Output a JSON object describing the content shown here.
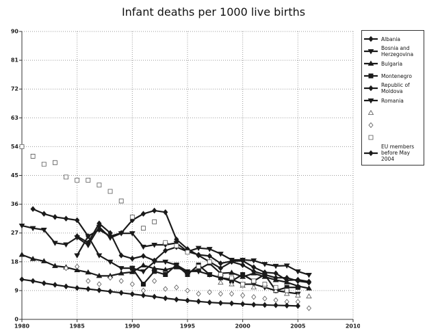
{
  "chart_data": {
    "type": "line",
    "title": "Infant deaths per 1000 live births",
    "x": [
      1980,
      1981,
      1982,
      1983,
      1984,
      1985,
      1986,
      1987,
      1988,
      1989,
      1990,
      1991,
      1992,
      1993,
      1994,
      1995,
      1996,
      1997,
      1998,
      1999,
      2000,
      2001,
      2002,
      2003,
      2004,
      2005,
      2006
    ],
    "xlim": [
      1980,
      2010
    ],
    "xticks": [
      1980,
      1985,
      1990,
      1995,
      2000,
      2005,
      2010
    ],
    "ylim": [
      0,
      90
    ],
    "yticks": [
      0,
      9,
      18,
      27,
      36,
      45,
      54,
      63,
      72,
      81,
      90
    ],
    "grid": true,
    "legend": "right",
    "series": [
      {
        "name": "Albania",
        "color": "#1a1a1a",
        "marker": "diamond",
        "line": true,
        "values": [
          null,
          34.5,
          33,
          32,
          31.5,
          31,
          26,
          28,
          26,
          27,
          31,
          33,
          34,
          33.5,
          25,
          22,
          20,
          18,
          16,
          18,
          17,
          15,
          14,
          13,
          13,
          12,
          11.5
        ]
      },
      {
        "name": "Bosnia and Herzegovina",
        "color": "#1a1a1a",
        "marker": "triangle-down",
        "line": true,
        "values": [
          null,
          null,
          null,
          null,
          null,
          20,
          26,
          20,
          18,
          16,
          16,
          15,
          18,
          18,
          17,
          15,
          15,
          14,
          13,
          12.5,
          11,
          11,
          10,
          9,
          8.5,
          8,
          null
        ]
      },
      {
        "name": "Bulgaria",
        "color": "#1a1a1a",
        "marker": "triangle-up",
        "line": true,
        "values": [
          20.2,
          18.9,
          18.2,
          16.7,
          16.3,
          15.4,
          14.7,
          13.6,
          13.6,
          14.4,
          14.8,
          16.9,
          15.9,
          15.5,
          16.3,
          14.8,
          15.6,
          17.5,
          14.4,
          14.6,
          13.3,
          14.4,
          13.3,
          12.3,
          11.6,
          10.4,
          9.7
        ]
      },
      {
        "name": "Montenegro",
        "color": "#1a1a1a",
        "marker": "square",
        "line": true,
        "values": [
          null,
          null,
          null,
          null,
          null,
          null,
          null,
          null,
          null,
          null,
          16,
          11,
          15,
          14,
          17,
          14,
          17,
          14,
          13,
          12,
          14,
          12,
          14,
          9,
          10,
          10,
          null
        ]
      },
      {
        "name": "Republic of Moldova",
        "color": "#1a1a1a",
        "marker": "diamond",
        "line": true,
        "values": [
          null,
          null,
          null,
          null,
          null,
          26,
          24,
          30,
          27,
          20,
          19,
          19.8,
          18.4,
          21.5,
          22.6,
          21.2,
          20.2,
          19.8,
          17.5,
          18.2,
          18.3,
          16.3,
          14.7,
          14.4,
          12.2,
          12.4,
          11.8
        ]
      },
      {
        "name": "Romania",
        "color": "#1a1a1a",
        "marker": "triangle-down",
        "line": true,
        "values": [
          29.3,
          28.5,
          28,
          23.9,
          23.4,
          25.6,
          23.2,
          28.9,
          25.5,
          26.9,
          26.9,
          22.7,
          23.3,
          23.3,
          23.9,
          21.2,
          22.3,
          22,
          20.5,
          18.6,
          18.6,
          18.4,
          17.3,
          16.7,
          16.8,
          15,
          13.9
        ]
      },
      {
        "name": null,
        "color": "#555555",
        "marker": "open-triangle",
        "line": false,
        "values": [
          null,
          null,
          null,
          null,
          null,
          null,
          null,
          null,
          null,
          null,
          null,
          null,
          null,
          null,
          null,
          null,
          null,
          null,
          11.5,
          11,
          10.5,
          10,
          10.5,
          9,
          8,
          7.5,
          7.2
        ]
      },
      {
        "name": null,
        "color": "#555555",
        "marker": "open-diamond",
        "line": false,
        "values": [
          null,
          null,
          null,
          null,
          16,
          16.5,
          12,
          11,
          13,
          12,
          11,
          9,
          12,
          9.5,
          10,
          9,
          8,
          8.5,
          8,
          8,
          7.5,
          7,
          6.5,
          6,
          5.5,
          5.5,
          3.5
        ]
      },
      {
        "name": null,
        "color": "#555555",
        "marker": "open-square",
        "line": false,
        "values": [
          54,
          51,
          48.5,
          49,
          44.5,
          43.5,
          43.5,
          42,
          40,
          37,
          32,
          28.5,
          30.5,
          24,
          23,
          21,
          16.5,
          18,
          14,
          13,
          11,
          12,
          11,
          10,
          9,
          null,
          null
        ]
      },
      {
        "name": "EU members before May 2004",
        "color": "#1a1a1a",
        "marker": "diamond",
        "line": true,
        "values": [
          12.5,
          12,
          11.3,
          10.8,
          10.3,
          9.8,
          9.5,
          9.1,
          8.7,
          8.3,
          7.9,
          7.5,
          7.1,
          6.6,
          6.2,
          5.9,
          5.6,
          5.3,
          5.1,
          5,
          4.8,
          4.6,
          4.5,
          4.4,
          4.3,
          4.2,
          null
        ]
      }
    ]
  }
}
